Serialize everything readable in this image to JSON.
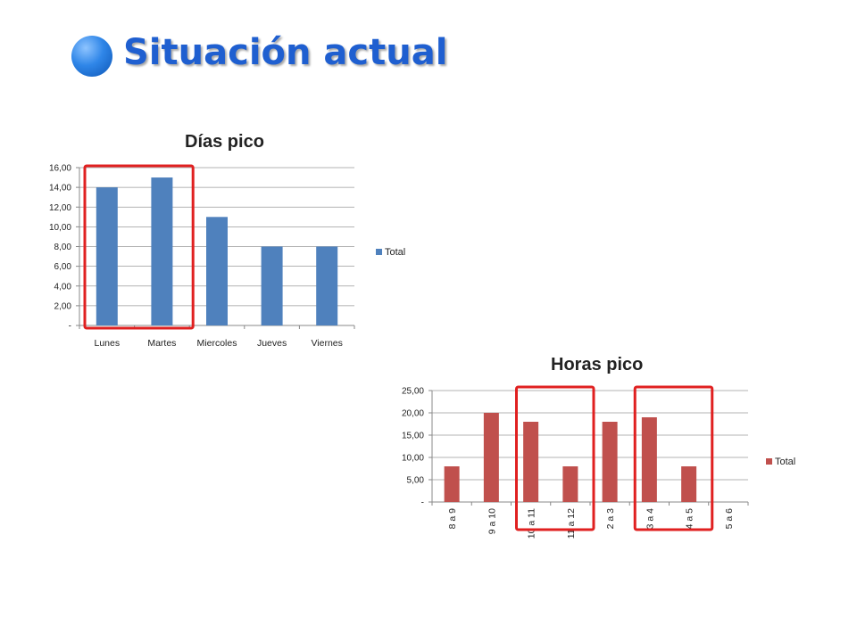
{
  "slide": {
    "title": "Situación actual"
  },
  "colors": {
    "days_bar": "#4f81bd",
    "hours_bar": "#c0504d",
    "highlight": "#e02020",
    "title": "#1f5fd0"
  },
  "chart_data": [
    {
      "id": "days",
      "type": "bar",
      "title": "Días pico",
      "categories": [
        "Lunes",
        "Martes",
        "Miercoles",
        "Jueves",
        "Viernes"
      ],
      "series": [
        {
          "name": "Total",
          "values": [
            14,
            15,
            11,
            8,
            8
          ]
        }
      ],
      "ylim": [
        0,
        16
      ],
      "yticks": [
        "-",
        "2,00",
        "4,00",
        "6,00",
        "8,00",
        "10,00",
        "12,00",
        "14,00",
        "16,00"
      ],
      "legend": "right",
      "grid": true,
      "highlighted_categories": [
        "Lunes",
        "Martes"
      ]
    },
    {
      "id": "hours",
      "type": "bar",
      "title": "Horas pico",
      "categories": [
        "8 a 9",
        "9 a 10",
        "10 a 11",
        "11 a 12",
        "2 a 3",
        "3 a 4",
        "4 a 5",
        "5 a 6"
      ],
      "series": [
        {
          "name": "Total",
          "values": [
            8,
            20,
            18,
            8,
            18,
            19,
            8,
            0
          ]
        }
      ],
      "ylim": [
        0,
        25
      ],
      "yticks": [
        "-",
        "5,00",
        "10,00",
        "15,00",
        "20,00",
        "25,00"
      ],
      "legend": "right",
      "grid": true,
      "highlighted_categories": [
        [
          "10 a 11",
          "11 a 12"
        ],
        [
          "3 a 4",
          "4 a 5"
        ]
      ]
    }
  ]
}
